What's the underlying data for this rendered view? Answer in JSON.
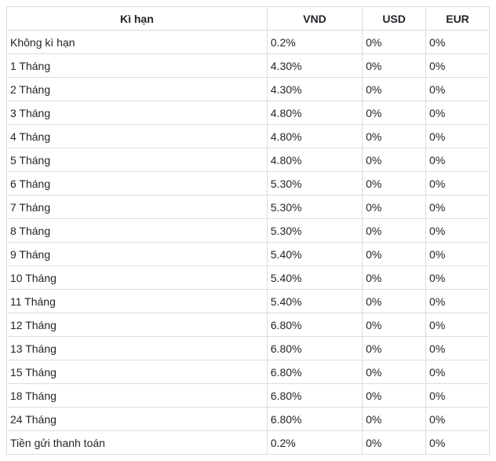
{
  "table": {
    "columns": [
      {
        "label": "Kì hạn",
        "class": "col-term"
      },
      {
        "label": "VND",
        "class": "col-vnd"
      },
      {
        "label": "USD",
        "class": "col-usd"
      },
      {
        "label": "EUR",
        "class": "col-eur"
      }
    ],
    "rows": [
      [
        "Không kì hạn",
        "0.2%",
        "0%",
        "0%"
      ],
      [
        "1 Tháng",
        "4.30%",
        "0%",
        "0%"
      ],
      [
        "2 Tháng",
        "4.30%",
        "0%",
        "0%"
      ],
      [
        "3 Tháng",
        "4.80%",
        "0%",
        "0%"
      ],
      [
        "4 Tháng",
        "4.80%",
        "0%",
        "0%"
      ],
      [
        "5 Tháng",
        "4.80%",
        "0%",
        "0%"
      ],
      [
        "6 Tháng",
        "5.30%",
        "0%",
        "0%"
      ],
      [
        "7 Tháng",
        "5.30%",
        "0%",
        "0%"
      ],
      [
        "8 Tháng",
        "5.30%",
        "0%",
        "0%"
      ],
      [
        "9 Tháng",
        "5.40%",
        "0%",
        "0%"
      ],
      [
        "10 Tháng",
        "5.40%",
        "0%",
        "0%"
      ],
      [
        "11 Tháng",
        "5.40%",
        "0%",
        "0%"
      ],
      [
        "12 Tháng",
        "6.80%",
        "0%",
        "0%"
      ],
      [
        "13 Tháng",
        "6.80%",
        "0%",
        "0%"
      ],
      [
        "15 Tháng",
        "6.80%",
        "0%",
        "0%"
      ],
      [
        "18 Tháng",
        "6.80%",
        "0%",
        "0%"
      ],
      [
        "24 Tháng",
        "6.80%",
        "0%",
        "0%"
      ],
      [
        "Tiền gửi thanh toán",
        "0.2%",
        "0%",
        "0%"
      ]
    ],
    "border_color": "#dddddd",
    "text_color": "#212529",
    "background_color": "#ffffff",
    "font_size": 14,
    "header_font_weight": "bold"
  }
}
